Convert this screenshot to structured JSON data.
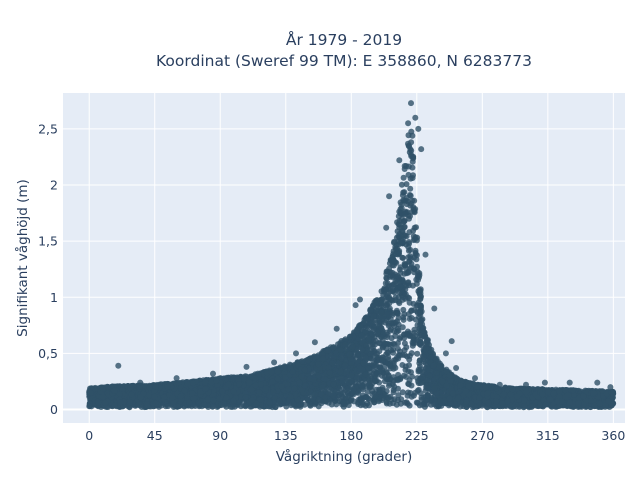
{
  "chart_data": {
    "type": "scatter",
    "title_lines": [
      "År 1979 - 2019",
      "Koordinat (Sweref 99 TM): E 358860, N 6283773"
    ],
    "xlabel": "Vågriktning (grader)",
    "ylabel": "Signifikant våghöjd (m)",
    "xlim": [
      -18,
      368
    ],
    "ylim": [
      -0.12,
      2.82
    ],
    "x_ticks": [
      0,
      45,
      90,
      135,
      180,
      225,
      270,
      315,
      360
    ],
    "x_tick_labels": [
      "0",
      "45",
      "90",
      "135",
      "180",
      "225",
      "270",
      "315",
      "360"
    ],
    "y_ticks": [
      0,
      0.5,
      1,
      1.5,
      2,
      2.5
    ],
    "y_tick_labels": [
      "0",
      "0,5",
      "1",
      "1,5",
      "2",
      "2,5"
    ],
    "grid": true,
    "colors": {
      "marker": "#2f5168",
      "plot_bg": "#e5ecf6",
      "grid": "#ffffff",
      "text": "#2a3f5f"
    },
    "envelope": {
      "direction": [
        0,
        20,
        45,
        70,
        90,
        110,
        130,
        150,
        165,
        180,
        190,
        200,
        208,
        214,
        218,
        222,
        226,
        230,
        240,
        250,
        260,
        270,
        290,
        315,
        340,
        360
      ],
      "max_height": [
        0.19,
        0.21,
        0.22,
        0.25,
        0.28,
        0.3,
        0.37,
        0.45,
        0.55,
        0.66,
        0.82,
        1.05,
        1.4,
        1.9,
        2.45,
        2.5,
        1.35,
        0.7,
        0.42,
        0.3,
        0.24,
        0.22,
        0.19,
        0.18,
        0.17,
        0.16
      ],
      "min_height": 0.02
    },
    "points": [
      {
        "x": 20,
        "y": 0.39
      },
      {
        "x": 221,
        "y": 2.73
      },
      {
        "x": 224,
        "y": 2.6
      },
      {
        "x": 219,
        "y": 2.55
      },
      {
        "x": 226,
        "y": 2.5
      },
      {
        "x": 222,
        "y": 2.44
      },
      {
        "x": 213,
        "y": 2.22
      },
      {
        "x": 228,
        "y": 2.32
      },
      {
        "x": 206,
        "y": 1.9
      },
      {
        "x": 204,
        "y": 1.62
      },
      {
        "x": 231,
        "y": 1.38
      },
      {
        "x": 237,
        "y": 0.9
      },
      {
        "x": 249,
        "y": 0.61
      },
      {
        "x": 245,
        "y": 0.5
      },
      {
        "x": 252,
        "y": 0.37
      },
      {
        "x": 186,
        "y": 0.98
      },
      {
        "x": 183,
        "y": 0.93
      },
      {
        "x": 108,
        "y": 0.38
      },
      {
        "x": 127,
        "y": 0.42
      },
      {
        "x": 142,
        "y": 0.5
      },
      {
        "x": 155,
        "y": 0.6
      },
      {
        "x": 170,
        "y": 0.72
      },
      {
        "x": 265,
        "y": 0.28
      },
      {
        "x": 282,
        "y": 0.22
      },
      {
        "x": 300,
        "y": 0.22
      },
      {
        "x": 313,
        "y": 0.24
      },
      {
        "x": 330,
        "y": 0.24
      },
      {
        "x": 349,
        "y": 0.24
      },
      {
        "x": 358,
        "y": 0.2
      },
      {
        "x": 85,
        "y": 0.32
      },
      {
        "x": 60,
        "y": 0.28
      },
      {
        "x": 35,
        "y": 0.24
      }
    ]
  }
}
